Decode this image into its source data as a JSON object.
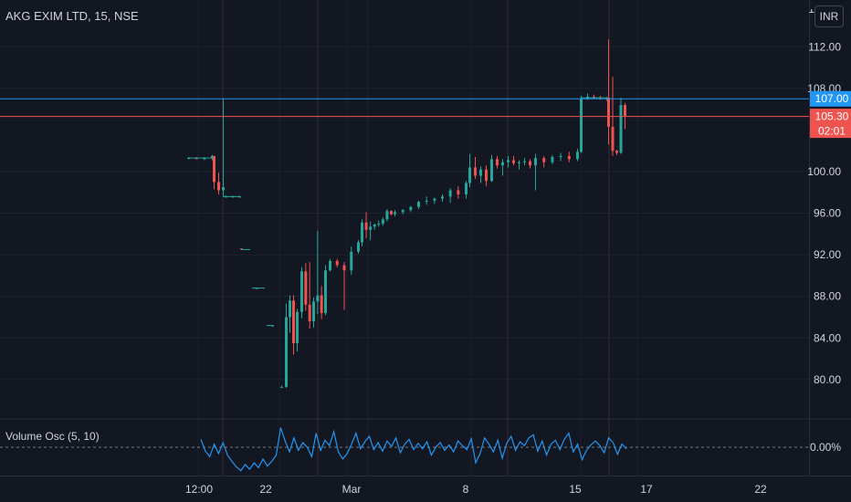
{
  "header": {
    "symbol": "AKG EXIM LTD",
    "interval": "15",
    "exchange": "NSE",
    "title_text": "AKG EXIM LTD, 15, NSE",
    "currency": "INR"
  },
  "colors": {
    "background": "#131722",
    "grid": "#1e222d",
    "up": "#26a69a",
    "down": "#ef5350",
    "level_line": "#2196f3",
    "price_line": "#ef5350",
    "osc_line": "#2196f3",
    "axis_text": "#d1d4dc"
  },
  "chart_data": [
    {
      "type": "candlestick",
      "title": "AKG EXIM LTD, 15, NSE",
      "y_ticks": [
        "112.00",
        "108.00",
        "100.00",
        "96.00",
        "92.00",
        "88.00",
        "84.00",
        "80.00"
      ],
      "x_ticks": [
        "12:00",
        "22",
        "Mar",
        "8",
        "15",
        "17",
        "22"
      ],
      "ylim": [
        76.3,
        116.5
      ],
      "horizontal_lines": [
        {
          "value": 107.0,
          "label": "107.00",
          "color": "#2196f3"
        },
        {
          "value": 105.3,
          "label": "105.30",
          "sublabel": "02:01",
          "color": "#ef5350"
        }
      ],
      "note": "price series approximated as open/high/low/close groups; first value = x index (0-100 across visible trading span)",
      "ohlc": [
        [
          0,
          101.3,
          101.4,
          101.2,
          101.3
        ],
        [
          1,
          101.3,
          101.4,
          101.2,
          101.2
        ],
        [
          2,
          101.2,
          101.4,
          101.1,
          101.3
        ],
        [
          3,
          101.3,
          101.6,
          101.1,
          101.5
        ],
        [
          4,
          101.5,
          101.5,
          98.3,
          99.0
        ],
        [
          5,
          99.0,
          99.9,
          97.8,
          98.2
        ],
        [
          6,
          98.2,
          107.0,
          97.6,
          98.5
        ],
        [
          7,
          97.6,
          97.7,
          97.5,
          97.6
        ],
        [
          8,
          97.6,
          97.7,
          97.5,
          97.6
        ],
        [
          9,
          97.6,
          97.7,
          97.5,
          97.6
        ],
        [
          10,
          92.6,
          92.6,
          92.5,
          92.5
        ],
        [
          11,
          88.8,
          88.8,
          88.7,
          88.8
        ],
        [
          12,
          85.2,
          85.2,
          85.1,
          85.2
        ],
        [
          13,
          79.3,
          79.4,
          79.2,
          79.3
        ],
        [
          14,
          79.3,
          87.3,
          79.2,
          86.0
        ],
        [
          15,
          86.0,
          88.1,
          84.5,
          87.6
        ],
        [
          16,
          87.6,
          88.1,
          82.4,
          83.5
        ],
        [
          17,
          83.5,
          86.8,
          82.7,
          86.5
        ],
        [
          18,
          86.5,
          90.8,
          85.9,
          90.4
        ],
        [
          19,
          90.4,
          91.2,
          86.6,
          87.2
        ],
        [
          20,
          87.2,
          91.3,
          84.9,
          85.6
        ],
        [
          21,
          85.6,
          87.9,
          85.0,
          87.5
        ],
        [
          22,
          87.5,
          94.3,
          86.3,
          88.1
        ],
        [
          23,
          88.1,
          89.0,
          85.8,
          86.4
        ],
        [
          24,
          86.4,
          91.0,
          86.2,
          90.5
        ],
        [
          25,
          90.5,
          91.6,
          90.4,
          91.4
        ],
        [
          26,
          91.4,
          91.6,
          90.8,
          91.0
        ],
        [
          27,
          91.0,
          91.3,
          86.7,
          90.5
        ],
        [
          28,
          90.5,
          92.8,
          90.1,
          92.3
        ],
        [
          29,
          92.3,
          93.4,
          92.1,
          93.2
        ],
        [
          30,
          93.2,
          95.4,
          92.8,
          95.1
        ],
        [
          31,
          95.1,
          96.1,
          93.6,
          94.4
        ],
        [
          32,
          94.4,
          95.2,
          93.4,
          94.7
        ],
        [
          33,
          94.7,
          95.0,
          94.4,
          94.9
        ],
        [
          34,
          94.9,
          95.3,
          94.7,
          95.0
        ],
        [
          35,
          95.0,
          95.6,
          94.8,
          95.4
        ],
        [
          36,
          95.4,
          96.4,
          95.2,
          96.2
        ],
        [
          37,
          96.2,
          96.3,
          95.8,
          95.9
        ],
        [
          38,
          95.9,
          96.3,
          95.7,
          96.1
        ],
        [
          39,
          96.1,
          96.4,
          95.9,
          96.3
        ],
        [
          40,
          96.3,
          96.7,
          96.1,
          96.6
        ],
        [
          41,
          96.6,
          97.2,
          96.4,
          97.1
        ],
        [
          42,
          97.1,
          97.6,
          96.8,
          97.2
        ],
        [
          43,
          97.2,
          97.5,
          96.9,
          97.4
        ],
        [
          44,
          97.4,
          97.8,
          97.1,
          97.6
        ],
        [
          45,
          97.6,
          98.4,
          97.0,
          98.2
        ],
        [
          46,
          98.2,
          98.6,
          97.4,
          97.8
        ],
        [
          47,
          97.8,
          99.1,
          97.4,
          98.9
        ],
        [
          48,
          98.9,
          101.7,
          98.5,
          100.4
        ],
        [
          49,
          100.4,
          101.4,
          99.3,
          99.6
        ],
        [
          50,
          99.6,
          100.5,
          98.9,
          100.2
        ],
        [
          51,
          100.2,
          100.6,
          98.6,
          99.1
        ],
        [
          52,
          99.1,
          101.6,
          99.0,
          101.2
        ],
        [
          53,
          101.2,
          101.5,
          100.3,
          100.6
        ],
        [
          54,
          100.6,
          101.2,
          99.6,
          100.9
        ],
        [
          55,
          100.9,
          101.5,
          100.4,
          101.1
        ],
        [
          56,
          101.1,
          101.5,
          100.6,
          100.8
        ],
        [
          57,
          100.8,
          101.1,
          100.2,
          100.9
        ],
        [
          58,
          100.9,
          101.3,
          100.6,
          101.0
        ],
        [
          59,
          101.0,
          101.2,
          100.3,
          100.6
        ],
        [
          60,
          100.6,
          101.7,
          98.2,
          101.3
        ],
        [
          61,
          101.3,
          101.5,
          100.4,
          100.9
        ],
        [
          62,
          100.9,
          101.6,
          100.7,
          101.4
        ],
        [
          63,
          101.4,
          101.8,
          101.0,
          101.5
        ],
        [
          64,
          101.5,
          101.9,
          100.9,
          101.2
        ],
        [
          65,
          101.2,
          102.2,
          101.0,
          101.9
        ],
        [
          66,
          101.9,
          107.3,
          101.8,
          107.0
        ],
        [
          67,
          107.0,
          107.5,
          106.9,
          107.2
        ],
        [
          68,
          107.2,
          107.4,
          107.0,
          107.1
        ],
        [
          69,
          107.1,
          107.3,
          106.9,
          107.0
        ],
        [
          70,
          107.0,
          107.2,
          106.8,
          107.1
        ],
        [
          71,
          107.1,
          112.7,
          102.6,
          104.3
        ],
        [
          72,
          104.3,
          109.1,
          101.5,
          102.0
        ],
        [
          73,
          102.0,
          102.1,
          101.6,
          101.8
        ],
        [
          74,
          101.8,
          107.1,
          101.7,
          106.4
        ],
        [
          75,
          106.4,
          106.6,
          104.1,
          105.3
        ]
      ]
    },
    {
      "type": "line",
      "title": "Volume Osc",
      "params": "(5, 10)",
      "label_text": "Volume Osc (5, 10)",
      "y_ticks": [
        "0.00%"
      ],
      "zero_line": 0,
      "note": "oscillator values in percent",
      "values": [
        10,
        -5,
        -12,
        4,
        -8,
        6,
        -10,
        -18,
        -25,
        -30,
        -22,
        -28,
        -20,
        -26,
        -15,
        -24,
        -18,
        -10,
        25,
        8,
        -6,
        12,
        -4,
        6,
        0,
        -12,
        18,
        -4,
        9,
        2,
        20,
        -6,
        -15,
        -8,
        4,
        18,
        -2,
        7,
        14,
        -3,
        6,
        -5,
        8,
        1,
        12,
        -7,
        4,
        10,
        -3,
        5,
        -2,
        7,
        -10,
        0,
        6,
        -4,
        3,
        -6,
        8,
        2,
        -3,
        11,
        -20,
        -8,
        12,
        4,
        -6,
        9,
        -14,
        5,
        14,
        -4,
        7,
        2,
        12,
        16,
        -5,
        8,
        -10,
        4,
        9,
        -3,
        10,
        18,
        -6,
        4,
        -16,
        -4,
        3,
        8,
        2,
        -7,
        12,
        6,
        -9,
        4,
        -2
      ]
    }
  ]
}
